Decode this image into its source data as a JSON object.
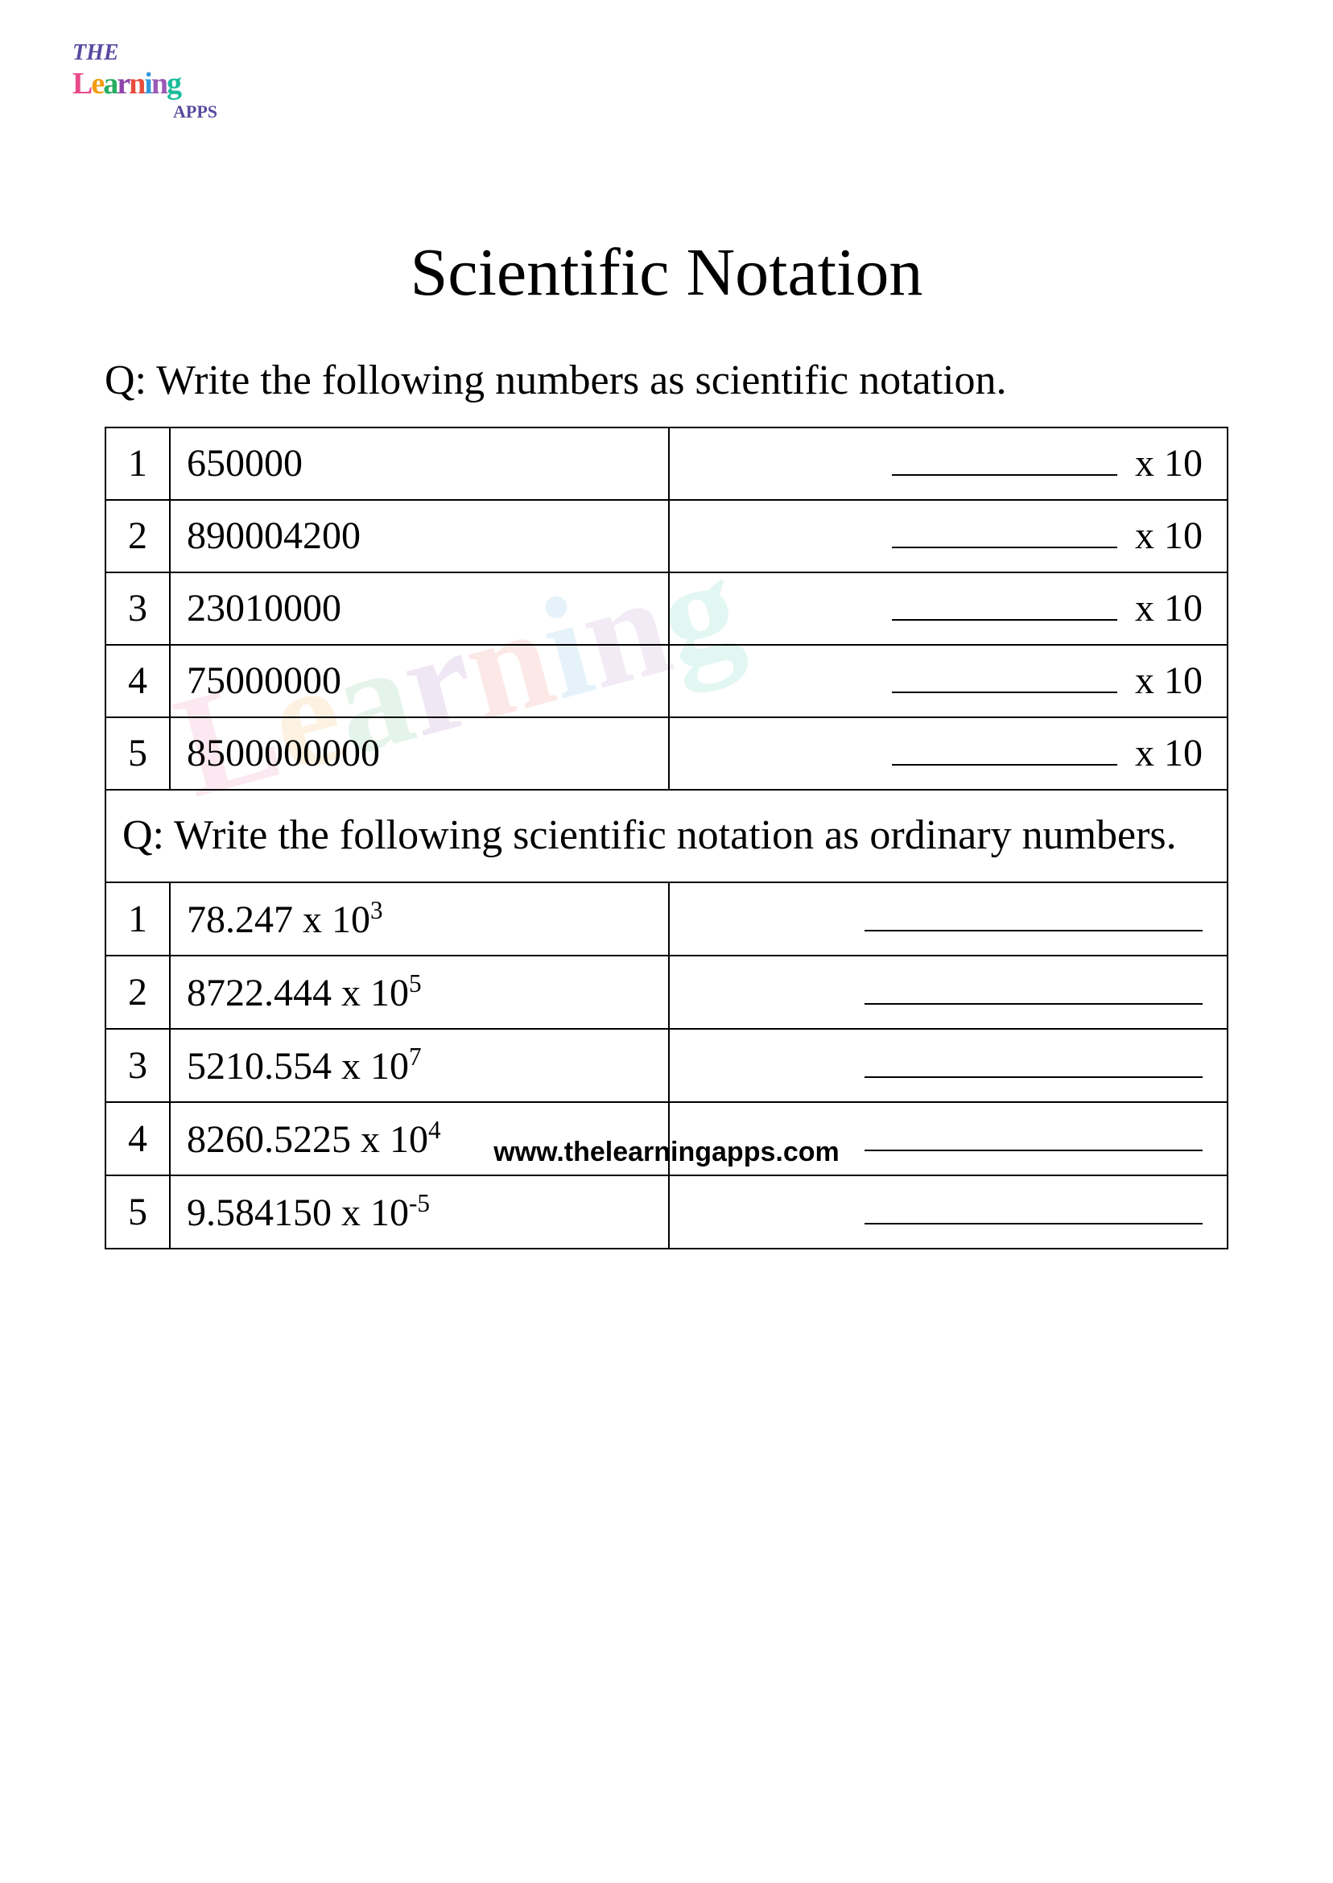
{
  "logo": {
    "line1": "THE",
    "line2": "Learning",
    "line3": "APPS"
  },
  "title": "Scientific Notation",
  "question1": "Q: Write the following numbers as scientific notation.",
  "table1": {
    "rows": [
      {
        "num": "1",
        "value": "650000",
        "suffix": "x 10"
      },
      {
        "num": "2",
        "value": "890004200",
        "suffix": "x 10"
      },
      {
        "num": "3",
        "value": "23010000",
        "suffix": "x 10"
      },
      {
        "num": "4",
        "value": "75000000",
        "suffix": "x 10"
      },
      {
        "num": "5",
        "value": "8500000000",
        "suffix": "x 10"
      }
    ]
  },
  "question2": "Q: Write the following scientific notation as ordinary numbers.",
  "table2": {
    "rows": [
      {
        "num": "1",
        "base": "78.247 x 10",
        "exp": "3"
      },
      {
        "num": "2",
        "base": "8722.444 x 10",
        "exp": "5"
      },
      {
        "num": "3",
        "base": "5210.554  x 10",
        "exp": "7"
      },
      {
        "num": "4",
        "base": "8260.5225  x 10",
        "exp": "4"
      },
      {
        "num": "5",
        "base": "9.584150 x 10",
        "exp": "-5"
      }
    ]
  },
  "footer": "www.thelearningapps.com",
  "colors": {
    "text": "#000000",
    "border": "#000000",
    "background": "#ffffff"
  }
}
